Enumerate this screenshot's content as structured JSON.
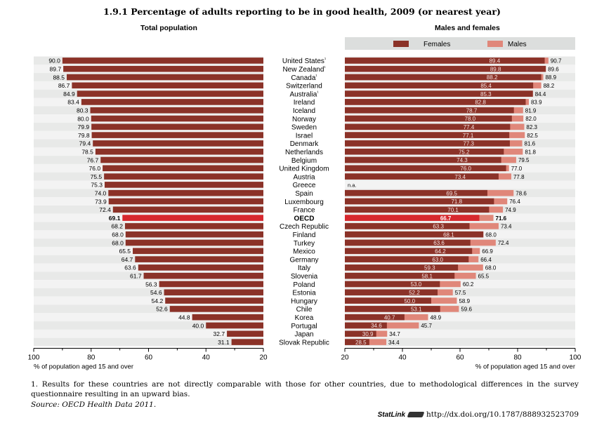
{
  "title": "1.9.1 Percentage of adults reporting to be in good health, 2009 (or nearest year)",
  "footnote": "1. Results for these countries are not directly comparable with those for other countries, due to methodological differences in the survey questionnaire resulting in an upward bias.",
  "source": "Source: OECD Health Data 2011.",
  "statlink": {
    "label": "StatLink",
    "url": "http://dx.doi.org/10.1787/888932523709"
  },
  "colors": {
    "females": "#8b3228",
    "males": "#e0877a",
    "total": "#8b3228",
    "oecd": "#d7282e",
    "legend_bg": "#dcdedd",
    "row_band": "#e8e9e8"
  },
  "chart_data": [
    {
      "type": "bar",
      "title": "Total population",
      "orientation": "horizontal",
      "direction": "right-to-left",
      "xlabel": "% of population aged 15 and over",
      "xlim": [
        100,
        20
      ],
      "xticks": [
        "100",
        "80",
        "60",
        "40",
        "20"
      ],
      "categories": [
        "United States¹",
        "New Zealand¹",
        "Canada¹",
        "Switzerland",
        "Australia¹",
        "Ireland",
        "Iceland",
        "Norway",
        "Sweden",
        "Israel",
        "Denmark",
        "Netherlands",
        "Belgium",
        "United Kingdom",
        "Austria",
        "Greece",
        "Spain",
        "Luxembourg",
        "France",
        "OECD",
        "Czech Republic",
        "Finland",
        "Turkey",
        "Mexico",
        "Germany",
        "Italy",
        "Slovenia",
        "Poland",
        "Estonia",
        "Hungary",
        "Chile",
        "Korea",
        "Portugal",
        "Japan",
        "Slovak Republic"
      ],
      "values": [
        "90.0",
        "89.7",
        "88.5",
        "86.7",
        "84.9",
        "83.4",
        "80.3",
        "80.0",
        "79.9",
        "79.8",
        "79.4",
        "78.5",
        "76.7",
        "76.0",
        "75.5",
        "75.3",
        "74.0",
        "73.9",
        "72.4",
        "69.1",
        "68.2",
        "68.0",
        "68.0",
        "65.5",
        "64.7",
        "63.6",
        "61.7",
        "56.3",
        "54.6",
        "54.2",
        "52.6",
        "44.8",
        "40.0",
        "32.7",
        "31.1"
      ],
      "highlight": "OECD"
    },
    {
      "type": "bar",
      "title": "Males and females",
      "orientation": "horizontal",
      "xlabel": "% of population aged 15 and over",
      "xlim": [
        20,
        100
      ],
      "xticks": [
        "20",
        "40",
        "60",
        "80",
        "100"
      ],
      "legend": "top",
      "categories": [
        "United States¹",
        "New Zealand¹",
        "Canada¹",
        "Switzerland",
        "Australia¹",
        "Ireland",
        "Iceland",
        "Norway",
        "Sweden",
        "Israel",
        "Denmark",
        "Netherlands",
        "Belgium",
        "United Kingdom",
        "Austria",
        "Greece",
        "Spain",
        "Luxembourg",
        "France",
        "OECD",
        "Czech Republic",
        "Finland",
        "Turkey",
        "Mexico",
        "Germany",
        "Italy",
        "Slovenia",
        "Poland",
        "Estonia",
        "Hungary",
        "Chile",
        "Korea",
        "Portugal",
        "Japan",
        "Slovak Republic"
      ],
      "series": [
        {
          "name": "Females",
          "values": [
            "89.4",
            "89.8",
            "88.2",
            "85.4",
            "85.3",
            "82.8",
            "78.7",
            "78.0",
            "77.4",
            "77.1",
            "77.3",
            "75.2",
            "74.3",
            "76.0",
            "73.4",
            "n.a.",
            "69.5",
            "71.8",
            "70.1",
            "66.7",
            "63.3",
            "68.1",
            "63.6",
            "64.2",
            "63.0",
            "59.3",
            "58.1",
            "53.0",
            "52.2",
            "50.0",
            "53.1",
            "40.7",
            "34.6",
            "30.9",
            "28.5"
          ]
        },
        {
          "name": "Males",
          "values": [
            "90.7",
            "89.6",
            "88.9",
            "88.2",
            "84.4",
            "83.9",
            "81.9",
            "82.0",
            "82.3",
            "82.5",
            "81.6",
            "81.8",
            "79.5",
            "77.0",
            "77.8",
            "n.a.",
            "78.6",
            "76.4",
            "74.9",
            "71.6",
            "73.4",
            "68.0",
            "72.4",
            "66.9",
            "66.4",
            "68.0",
            "65.5",
            "60.2",
            "57.5",
            "58.9",
            "59.6",
            "48.9",
            "45.7",
            "34.7",
            "34.4"
          ]
        }
      ],
      "highlight": "OECD"
    }
  ]
}
